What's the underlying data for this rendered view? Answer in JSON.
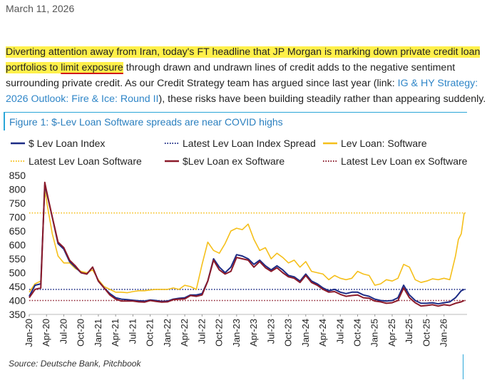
{
  "date": "March 11, 2026",
  "paragraph": {
    "hl1": "Diverting attention away from Iran, today's FT headline that JP Morgan is marking down private credit loan",
    "hl2a": "portfolios to ",
    "hl2b": "limit exposure",
    "rest1": " through drawn and undrawn lines of credit adds to the negative sentiment surrounding private credit. As our Credit Strategy team has argued since last year (link: ",
    "link": "IG & HY Strategy: 2026 Outlook: Fire & Ice: Round II",
    "rest2": "), these risks have been building steadily rather than appearing suddenly."
  },
  "colors": {
    "highlight": "#fff04a",
    "link": "#2f86c8",
    "accent": "#2aa6d8"
  },
  "chart_data": {
    "type": "line",
    "title": "Figure 1: $-Lev Loan Software spreads are near COVID highs",
    "source": "Source: Deutsche Bank, Pitchbook",
    "ylim": [
      350,
      850
    ],
    "yticks": [
      350,
      400,
      450,
      500,
      550,
      600,
      650,
      700,
      750,
      800,
      850
    ],
    "xticks": [
      "Jan-20",
      "Apr-20",
      "Jul-20",
      "Oct-20",
      "Jan-21",
      "Apr-21",
      "Jul-21",
      "Oct-21",
      "Jan-22",
      "Apr-22",
      "Jul-22",
      "Oct-22",
      "Jan-23",
      "Apr-23",
      "Jul-23",
      "Oct-23",
      "Jan-24",
      "Apr-24",
      "Jul-24",
      "Oct-24",
      "Jan-25",
      "Apr-25",
      "Jul-25",
      "Oct-25",
      "Jan-26"
    ],
    "x_unit_note": "x in months since Jan-20",
    "legend": [
      {
        "name": "$ Lev Loan Index",
        "color": "#1c2b85",
        "style": "solid"
      },
      {
        "name": "Latest Lev Loan Index Spread",
        "color": "#1c2b85",
        "style": "dotted"
      },
      {
        "name": "Lev Loan: Software",
        "color": "#f5bf1a",
        "style": "solid"
      },
      {
        "name": "Latest Lev Loan Software",
        "color": "#f5bf1a",
        "style": "dotted"
      },
      {
        "name": "$Lev Loan ex Software",
        "color": "#8b1a2a",
        "style": "solid"
      },
      {
        "name": "Latest Lev Loan ex Software",
        "color": "#8b1a2a",
        "style": "dotted"
      }
    ],
    "hlines": [
      {
        "name": "Latest Lev Loan Index Spread",
        "value": 440
      },
      {
        "name": "Latest Lev Loan Software",
        "value": 715
      },
      {
        "name": "Latest Lev Loan ex Software",
        "value": 400
      }
    ],
    "series": [
      {
        "name": "$ Lev Loan Index",
        "color": "#1c2b85",
        "points": [
          [
            0,
            415
          ],
          [
            1,
            455
          ],
          [
            2,
            460
          ],
          [
            2.7,
            815
          ],
          [
            3,
            790
          ],
          [
            4,
            700
          ],
          [
            5,
            605
          ],
          [
            6,
            585
          ],
          [
            7,
            540
          ],
          [
            8,
            520
          ],
          [
            9,
            500
          ],
          [
            10,
            495
          ],
          [
            11,
            520
          ],
          [
            12,
            470
          ],
          [
            13,
            445
          ],
          [
            14,
            425
          ],
          [
            15,
            410
          ],
          [
            16,
            405
          ],
          [
            17,
            403
          ],
          [
            18,
            401
          ],
          [
            19,
            399
          ],
          [
            20,
            398
          ],
          [
            21,
            402
          ],
          [
            22,
            400
          ],
          [
            23,
            397
          ],
          [
            24,
            398
          ],
          [
            25,
            405
          ],
          [
            26,
            408
          ],
          [
            27,
            410
          ],
          [
            28,
            420
          ],
          [
            29,
            420
          ],
          [
            30,
            425
          ],
          [
            31,
            470
          ],
          [
            32,
            550
          ],
          [
            33,
            520
          ],
          [
            34,
            500
          ],
          [
            35,
            520
          ],
          [
            36,
            565
          ],
          [
            37,
            560
          ],
          [
            38,
            550
          ],
          [
            39,
            530
          ],
          [
            40,
            545
          ],
          [
            41,
            525
          ],
          [
            42,
            510
          ],
          [
            43,
            525
          ],
          [
            44,
            510
          ],
          [
            45,
            490
          ],
          [
            46,
            485
          ],
          [
            47,
            470
          ],
          [
            48,
            495
          ],
          [
            49,
            470
          ],
          [
            50,
            460
          ],
          [
            51,
            445
          ],
          [
            52,
            435
          ],
          [
            53,
            440
          ],
          [
            54,
            430
          ],
          [
            55,
            425
          ],
          [
            56,
            430
          ],
          [
            57,
            430
          ],
          [
            58,
            420
          ],
          [
            59,
            415
          ],
          [
            60,
            405
          ],
          [
            61,
            400
          ],
          [
            62,
            398
          ],
          [
            63,
            400
          ],
          [
            64,
            410
          ],
          [
            65,
            455
          ],
          [
            66,
            420
          ],
          [
            67,
            400
          ],
          [
            68,
            390
          ],
          [
            69,
            390
          ],
          [
            70,
            392
          ],
          [
            71,
            388
          ],
          [
            72,
            392
          ],
          [
            73,
            395
          ],
          [
            74,
            410
          ],
          [
            75,
            435
          ],
          [
            75.5,
            440
          ]
        ]
      },
      {
        "name": "Lev Loan: Software",
        "color": "#f5bf1a",
        "points": [
          [
            0,
            430
          ],
          [
            1,
            460
          ],
          [
            2,
            470
          ],
          [
            2.7,
            800
          ],
          [
            3,
            760
          ],
          [
            4,
            640
          ],
          [
            5,
            560
          ],
          [
            6,
            535
          ],
          [
            7,
            535
          ],
          [
            8,
            515
          ],
          [
            9,
            505
          ],
          [
            10,
            500
          ],
          [
            11,
            510
          ],
          [
            12,
            475
          ],
          [
            13,
            450
          ],
          [
            14,
            440
          ],
          [
            15,
            430
          ],
          [
            16,
            430
          ],
          [
            17,
            428
          ],
          [
            18,
            432
          ],
          [
            19,
            435
          ],
          [
            20,
            435
          ],
          [
            21,
            438
          ],
          [
            22,
            440
          ],
          [
            23,
            440
          ],
          [
            24,
            440
          ],
          [
            25,
            445
          ],
          [
            26,
            440
          ],
          [
            27,
            455
          ],
          [
            28,
            450
          ],
          [
            29,
            440
          ],
          [
            30,
            530
          ],
          [
            31,
            610
          ],
          [
            32,
            580
          ],
          [
            33,
            570
          ],
          [
            34,
            605
          ],
          [
            35,
            650
          ],
          [
            36,
            660
          ],
          [
            37,
            655
          ],
          [
            38,
            675
          ],
          [
            39,
            620
          ],
          [
            40,
            580
          ],
          [
            41,
            590
          ],
          [
            42,
            550
          ],
          [
            43,
            570
          ],
          [
            44,
            555
          ],
          [
            45,
            535
          ],
          [
            46,
            545
          ],
          [
            47,
            520
          ],
          [
            48,
            540
          ],
          [
            49,
            505
          ],
          [
            50,
            500
          ],
          [
            51,
            495
          ],
          [
            52,
            475
          ],
          [
            53,
            490
          ],
          [
            54,
            480
          ],
          [
            55,
            475
          ],
          [
            56,
            480
          ],
          [
            57,
            505
          ],
          [
            58,
            495
          ],
          [
            59,
            490
          ],
          [
            60,
            455
          ],
          [
            61,
            460
          ],
          [
            62,
            475
          ],
          [
            63,
            470
          ],
          [
            64,
            480
          ],
          [
            65,
            530
          ],
          [
            66,
            520
          ],
          [
            67,
            475
          ],
          [
            68,
            465
          ],
          [
            69,
            470
          ],
          [
            70,
            478
          ],
          [
            71,
            475
          ],
          [
            72,
            480
          ],
          [
            73,
            475
          ],
          [
            74,
            560
          ],
          [
            74.5,
            620
          ],
          [
            75,
            640
          ],
          [
            75.5,
            715
          ]
        ]
      },
      {
        "name": "$Lev Loan ex Software",
        "color": "#8b1a2a",
        "points": [
          [
            0,
            410
          ],
          [
            1,
            440
          ],
          [
            2,
            445
          ],
          [
            2.7,
            825
          ],
          [
            3,
            795
          ],
          [
            4,
            700
          ],
          [
            5,
            610
          ],
          [
            6,
            590
          ],
          [
            7,
            545
          ],
          [
            8,
            525
          ],
          [
            9,
            500
          ],
          [
            10,
            495
          ],
          [
            11,
            520
          ],
          [
            12,
            470
          ],
          [
            13,
            445
          ],
          [
            14,
            420
          ],
          [
            15,
            405
          ],
          [
            16,
            398
          ],
          [
            17,
            398
          ],
          [
            18,
            398
          ],
          [
            19,
            395
          ],
          [
            20,
            394
          ],
          [
            21,
            400
          ],
          [
            22,
            397
          ],
          [
            23,
            394
          ],
          [
            24,
            395
          ],
          [
            25,
            403
          ],
          [
            26,
            405
          ],
          [
            27,
            406
          ],
          [
            28,
            418
          ],
          [
            29,
            415
          ],
          [
            30,
            420
          ],
          [
            31,
            470
          ],
          [
            32,
            545
          ],
          [
            33,
            510
          ],
          [
            34,
            495
          ],
          [
            35,
            505
          ],
          [
            36,
            555
          ],
          [
            37,
            550
          ],
          [
            38,
            545
          ],
          [
            39,
            520
          ],
          [
            40,
            540
          ],
          [
            41,
            518
          ],
          [
            42,
            505
          ],
          [
            43,
            518
          ],
          [
            44,
            500
          ],
          [
            45,
            485
          ],
          [
            46,
            480
          ],
          [
            47,
            465
          ],
          [
            48,
            490
          ],
          [
            49,
            465
          ],
          [
            50,
            455
          ],
          [
            51,
            440
          ],
          [
            52,
            430
          ],
          [
            53,
            432
          ],
          [
            54,
            422
          ],
          [
            55,
            415
          ],
          [
            56,
            418
          ],
          [
            57,
            420
          ],
          [
            58,
            410
          ],
          [
            59,
            408
          ],
          [
            60,
            398
          ],
          [
            61,
            395
          ],
          [
            62,
            390
          ],
          [
            63,
            392
          ],
          [
            64,
            400
          ],
          [
            65,
            445
          ],
          [
            66,
            410
          ],
          [
            67,
            392
          ],
          [
            68,
            380
          ],
          [
            69,
            382
          ],
          [
            70,
            385
          ],
          [
            71,
            380
          ],
          [
            72,
            385
          ],
          [
            73,
            382
          ],
          [
            74,
            390
          ],
          [
            75,
            395
          ],
          [
            75.5,
            400
          ]
        ]
      }
    ]
  }
}
